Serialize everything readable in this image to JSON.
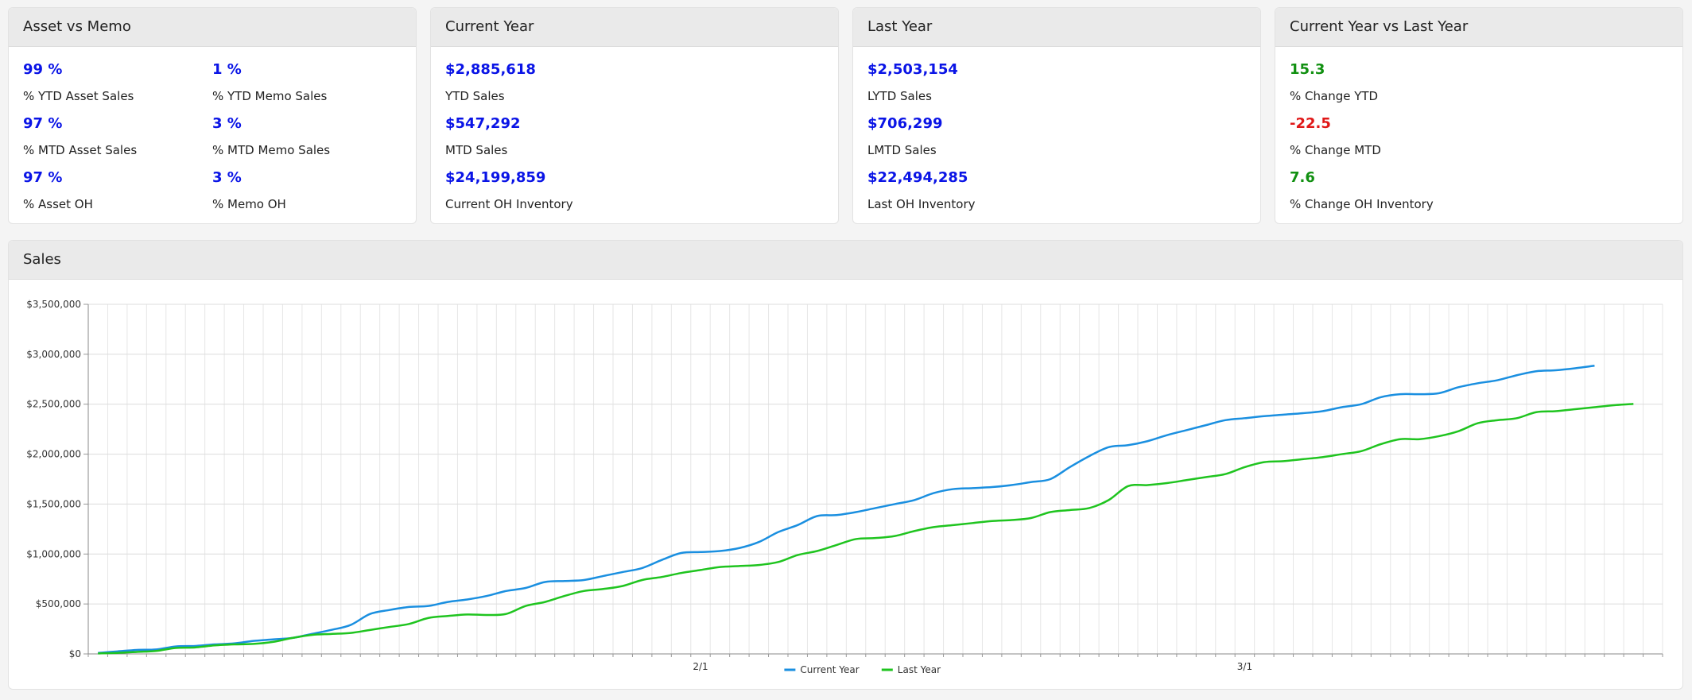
{
  "cards": [
    {
      "title": "Asset vs Memo",
      "metrics": [
        {
          "value": "99 %",
          "label": "% YTD Asset Sales",
          "color": "#0a14e6"
        },
        {
          "value": "1 %",
          "label": "% YTD Memo Sales",
          "color": "#0a14e6"
        },
        {
          "value": "97 %",
          "label": "% MTD Asset Sales",
          "color": "#0a14e6"
        },
        {
          "value": "3 %",
          "label": "% MTD Memo Sales",
          "color": "#0a14e6"
        },
        {
          "value": "97 %",
          "label": "% Asset OH",
          "color": "#0a14e6"
        },
        {
          "value": "3 %",
          "label": "% Memo OH",
          "color": "#0a14e6"
        }
      ]
    },
    {
      "title": "Current Year",
      "metrics": [
        {
          "value": "$2,885,618",
          "label": "YTD Sales",
          "color": "#0a14e6"
        },
        {
          "value": "$547,292",
          "label": "MTD Sales",
          "color": "#0a14e6"
        },
        {
          "value": "$24,199,859",
          "label": "Current OH Inventory",
          "color": "#0a14e6"
        }
      ]
    },
    {
      "title": "Last Year",
      "metrics": [
        {
          "value": "$2,503,154",
          "label": "LYTD Sales",
          "color": "#0a14e6"
        },
        {
          "value": "$706,299",
          "label": "LMTD Sales",
          "color": "#0a14e6"
        },
        {
          "value": "$22,494,285",
          "label": "Last OH Inventory",
          "color": "#0a14e6"
        }
      ]
    },
    {
      "title": "Current Year vs Last Year",
      "metrics": [
        {
          "value": "15.3",
          "label": "% Change YTD",
          "color": "#119011"
        },
        {
          "value": "-22.5",
          "label": "% Change MTD",
          "color": "#e01818"
        },
        {
          "value": "7.6",
          "label": "% Change OH Inventory",
          "color": "#119011"
        }
      ]
    }
  ],
  "sales_panel": {
    "title": "Sales"
  },
  "chart_data": {
    "type": "line",
    "ylim": [
      0,
      3500000
    ],
    "yticks": [
      {
        "value": 0,
        "label": "$0"
      },
      {
        "value": 500000,
        "label": "$500,000"
      },
      {
        "value": 1000000,
        "label": "$1,000,000"
      },
      {
        "value": 1500000,
        "label": "$1,500,000"
      },
      {
        "value": 2000000,
        "label": "$2,000,000"
      },
      {
        "value": 2500000,
        "label": "$2,500,000"
      },
      {
        "value": 3000000,
        "label": "$3,000,000"
      },
      {
        "value": 3500000,
        "label": "$3,500,000"
      }
    ],
    "xlim": [
      "01-01",
      "03-22"
    ],
    "xticks": [
      {
        "value": "02-01",
        "label": "2/1"
      },
      {
        "value": "03-01",
        "label": "3/1"
      }
    ],
    "grid": true,
    "legend": "bottom",
    "series": [
      {
        "name": "Current Year",
        "color": "#1a8fe0",
        "points": [
          [
            "01-01",
            10000
          ],
          [
            "01-02",
            25000
          ],
          [
            "01-03",
            40000
          ],
          [
            "01-04",
            45000
          ],
          [
            "01-05",
            75000
          ],
          [
            "01-06",
            80000
          ],
          [
            "01-07",
            95000
          ],
          [
            "01-08",
            105000
          ],
          [
            "01-09",
            130000
          ],
          [
            "01-10",
            145000
          ],
          [
            "01-11",
            160000
          ],
          [
            "01-12",
            200000
          ],
          [
            "01-13",
            240000
          ],
          [
            "01-14",
            290000
          ],
          [
            "01-15",
            400000
          ],
          [
            "01-16",
            440000
          ],
          [
            "01-17",
            470000
          ],
          [
            "01-18",
            480000
          ],
          [
            "01-19",
            520000
          ],
          [
            "01-20",
            545000
          ],
          [
            "01-21",
            580000
          ],
          [
            "01-22",
            630000
          ],
          [
            "01-23",
            660000
          ],
          [
            "01-24",
            720000
          ],
          [
            "01-25",
            730000
          ],
          [
            "01-26",
            740000
          ],
          [
            "01-27",
            780000
          ],
          [
            "01-28",
            820000
          ],
          [
            "01-29",
            860000
          ],
          [
            "01-30",
            940000
          ],
          [
            "01-31",
            1010000
          ],
          [
            "02-01",
            1020000
          ],
          [
            "02-02",
            1030000
          ],
          [
            "02-03",
            1060000
          ],
          [
            "02-04",
            1120000
          ],
          [
            "02-05",
            1220000
          ],
          [
            "02-06",
            1290000
          ],
          [
            "02-07",
            1380000
          ],
          [
            "02-08",
            1390000
          ],
          [
            "02-09",
            1420000
          ],
          [
            "02-10",
            1460000
          ],
          [
            "02-11",
            1500000
          ],
          [
            "02-12",
            1540000
          ],
          [
            "02-13",
            1610000
          ],
          [
            "02-14",
            1650000
          ],
          [
            "02-15",
            1660000
          ],
          [
            "02-16",
            1670000
          ],
          [
            "02-17",
            1690000
          ],
          [
            "02-18",
            1720000
          ],
          [
            "02-19",
            1750000
          ],
          [
            "02-20",
            1870000
          ],
          [
            "02-21",
            1980000
          ],
          [
            "02-22",
            2070000
          ],
          [
            "02-23",
            2090000
          ],
          [
            "02-24",
            2130000
          ],
          [
            "02-25",
            2190000
          ],
          [
            "02-26",
            2240000
          ],
          [
            "02-27",
            2290000
          ],
          [
            "02-28",
            2340000
          ],
          [
            "03-01",
            2360000
          ],
          [
            "03-02",
            2380000
          ],
          [
            "03-03",
            2395000
          ],
          [
            "03-04",
            2410000
          ],
          [
            "03-05",
            2430000
          ],
          [
            "03-06",
            2470000
          ],
          [
            "03-07",
            2500000
          ],
          [
            "03-08",
            2570000
          ],
          [
            "03-09",
            2600000
          ],
          [
            "03-10",
            2600000
          ],
          [
            "03-11",
            2610000
          ],
          [
            "03-12",
            2670000
          ],
          [
            "03-13",
            2710000
          ],
          [
            "03-14",
            2740000
          ],
          [
            "03-15",
            2790000
          ],
          [
            "03-16",
            2830000
          ],
          [
            "03-17",
            2840000
          ],
          [
            "03-18",
            2860000
          ],
          [
            "03-19",
            2885618
          ]
        ]
      },
      {
        "name": "Last Year",
        "color": "#1fc41f",
        "points": [
          [
            "01-01",
            5000
          ],
          [
            "01-02",
            10000
          ],
          [
            "01-03",
            20000
          ],
          [
            "01-04",
            30000
          ],
          [
            "01-05",
            60000
          ],
          [
            "01-06",
            65000
          ],
          [
            "01-07",
            85000
          ],
          [
            "01-08",
            95000
          ],
          [
            "01-09",
            100000
          ],
          [
            "01-10",
            120000
          ],
          [
            "01-11",
            160000
          ],
          [
            "01-12",
            190000
          ],
          [
            "01-13",
            200000
          ],
          [
            "01-14",
            210000
          ],
          [
            "01-15",
            240000
          ],
          [
            "01-16",
            270000
          ],
          [
            "01-17",
            300000
          ],
          [
            "01-18",
            360000
          ],
          [
            "01-19",
            380000
          ],
          [
            "01-20",
            395000
          ],
          [
            "01-21",
            390000
          ],
          [
            "01-22",
            400000
          ],
          [
            "01-23",
            480000
          ],
          [
            "01-24",
            520000
          ],
          [
            "01-25",
            580000
          ],
          [
            "01-26",
            630000
          ],
          [
            "01-27",
            650000
          ],
          [
            "01-28",
            680000
          ],
          [
            "01-29",
            740000
          ],
          [
            "01-30",
            770000
          ],
          [
            "01-31",
            810000
          ],
          [
            "02-01",
            840000
          ],
          [
            "02-02",
            870000
          ],
          [
            "02-03",
            880000
          ],
          [
            "02-04",
            890000
          ],
          [
            "02-05",
            920000
          ],
          [
            "02-06",
            990000
          ],
          [
            "02-07",
            1030000
          ],
          [
            "02-08",
            1090000
          ],
          [
            "02-09",
            1150000
          ],
          [
            "02-10",
            1160000
          ],
          [
            "02-11",
            1180000
          ],
          [
            "02-12",
            1230000
          ],
          [
            "02-13",
            1270000
          ],
          [
            "02-14",
            1290000
          ],
          [
            "02-15",
            1310000
          ],
          [
            "02-16",
            1330000
          ],
          [
            "02-17",
            1340000
          ],
          [
            "02-18",
            1360000
          ],
          [
            "02-19",
            1420000
          ],
          [
            "02-20",
            1440000
          ],
          [
            "02-21",
            1460000
          ],
          [
            "02-22",
            1540000
          ],
          [
            "02-23",
            1680000
          ],
          [
            "02-24",
            1690000
          ],
          [
            "02-25",
            1710000
          ],
          [
            "02-26",
            1740000
          ],
          [
            "02-27",
            1770000
          ],
          [
            "02-28",
            1800000
          ],
          [
            "03-01",
            1870000
          ],
          [
            "03-02",
            1920000
          ],
          [
            "03-03",
            1930000
          ],
          [
            "03-04",
            1950000
          ],
          [
            "03-05",
            1970000
          ],
          [
            "03-06",
            2000000
          ],
          [
            "03-07",
            2030000
          ],
          [
            "03-08",
            2100000
          ],
          [
            "03-09",
            2150000
          ],
          [
            "03-10",
            2150000
          ],
          [
            "03-11",
            2180000
          ],
          [
            "03-12",
            2230000
          ],
          [
            "03-13",
            2310000
          ],
          [
            "03-14",
            2340000
          ],
          [
            "03-15",
            2360000
          ],
          [
            "03-16",
            2420000
          ],
          [
            "03-17",
            2430000
          ],
          [
            "03-18",
            2450000
          ],
          [
            "03-19",
            2470000
          ],
          [
            "03-20",
            2490000
          ],
          [
            "03-21",
            2503154
          ]
        ]
      }
    ]
  }
}
